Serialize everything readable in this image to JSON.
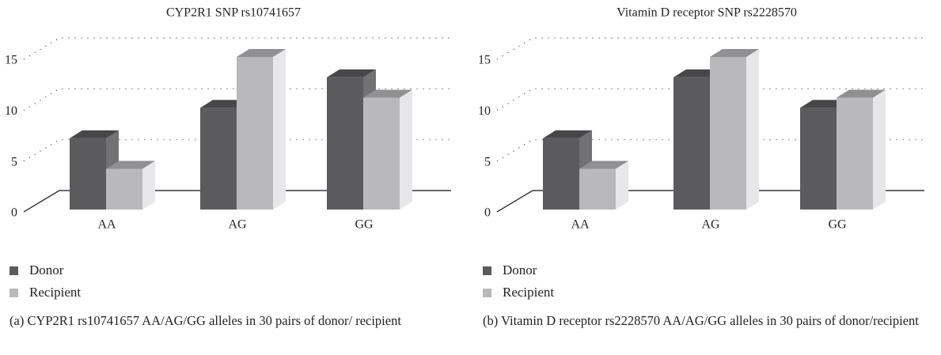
{
  "chart_data": [
    {
      "type": "bar3d",
      "title": "CYP2R1 SNP rs10741657",
      "categories": [
        "AA",
        "AG",
        "GG"
      ],
      "series": [
        {
          "name": "Donor",
          "color": "#5b5b5d",
          "values": [
            7,
            10,
            13
          ]
        },
        {
          "name": "Recipient",
          "color": "#b9b9bb",
          "values": [
            4,
            15,
            11
          ]
        }
      ],
      "ylim": [
        0,
        15
      ],
      "yticks": [
        0,
        5,
        10,
        15
      ],
      "grid": true,
      "caption": "(a)  CYP2R1 rs10741657 AA/AG/GG alleles in 30 pairs of donor/ recipient"
    },
    {
      "type": "bar3d",
      "title": "Vitamin D receptor SNP rs2228570",
      "categories": [
        "AA",
        "AG",
        "GG"
      ],
      "series": [
        {
          "name": "Donor",
          "color": "#5b5b5d",
          "values": [
            7,
            13,
            10
          ]
        },
        {
          "name": "Recipient",
          "color": "#b9b9bb",
          "values": [
            4,
            15,
            11
          ]
        }
      ],
      "ylim": [
        0,
        15
      ],
      "yticks": [
        0,
        5,
        10,
        15
      ],
      "grid": true,
      "caption": "(b)  Vitamin D receptor rs2228570 AA/AG/GG alleles in 30 pairs of donor/recipient"
    }
  ]
}
